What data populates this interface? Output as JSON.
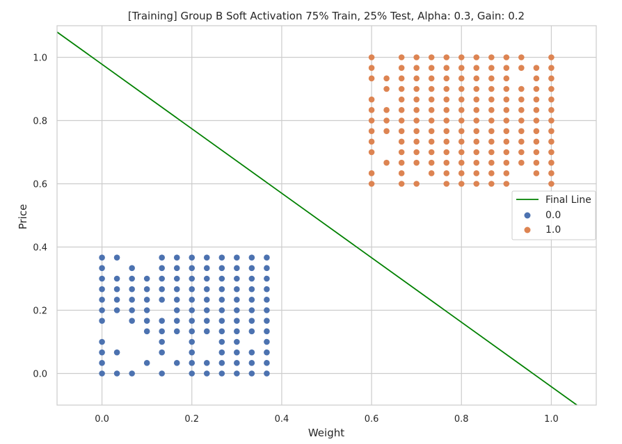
{
  "chart_data": {
    "type": "scatter",
    "title": "[Training] Group B Soft Activation 75% Train, 25% Test, Alpha: 0.3, Gain: 0.2",
    "xlabel": "Weight",
    "ylabel": "Price",
    "xlim": [
      -0.1,
      1.1
    ],
    "ylim": [
      -0.1,
      1.1
    ],
    "xticks": [
      0.0,
      0.2,
      0.4,
      0.6,
      0.8,
      1.0
    ],
    "yticks": [
      0.0,
      0.2,
      0.4,
      0.6,
      0.8,
      1.0
    ],
    "xtick_labels": [
      "0.0",
      "0.2",
      "0.4",
      "0.6",
      "0.8",
      "1.0"
    ],
    "ytick_labels": [
      "0.0",
      "0.2",
      "0.4",
      "0.6",
      "0.8",
      "1.0"
    ],
    "grid": true,
    "legend_position": "center-right",
    "line": {
      "name": "Final Line",
      "color": "#008000",
      "x": [
        -0.1,
        1.057
      ],
      "y": [
        1.08,
        -0.1
      ]
    },
    "series": [
      {
        "name": "0.0",
        "color": "#4c72b0",
        "x_grid": [
          0.0,
          0.0333,
          0.0667,
          0.1,
          0.1333,
          0.1667,
          0.2,
          0.2333,
          0.2667,
          0.3,
          0.3333,
          0.3667
        ],
        "y_grid": [
          0.0,
          0.0333,
          0.0667,
          0.1,
          0.1333,
          0.1667,
          0.2,
          0.2333,
          0.2667,
          0.3,
          0.3333,
          0.3667
        ],
        "rows": [
          "111010111111",
          "100101111111",
          "110010101111",
          "100010101101",
          "000111111111",
          "101111111111",
          "111101111111",
          "111111111111",
          "111111111111",
          "111111111111",
          "101011111111",
          "110011111111"
        ]
      },
      {
        "name": "1.0",
        "color": "#dd8452",
        "x_grid": [
          0.6,
          0.6333,
          0.6667,
          0.7,
          0.7333,
          0.7667,
          0.8,
          0.8333,
          0.8667,
          0.9,
          0.9333,
          0.9667,
          1.0
        ],
        "y_grid": [
          0.6,
          0.6333,
          0.6667,
          0.7,
          0.7333,
          0.7667,
          0.8,
          0.8333,
          0.8667,
          0.9,
          0.9333,
          0.9667,
          1.0
        ],
        "rows": [
          "1011011111001",
          "1010111111011",
          "0111111111111",
          "1011111111111",
          "1011111111111",
          "1111111111111",
          "1111111111111",
          "1111111111111",
          "1011111111111",
          "0111111111111",
          "1111111111011",
          "1011111111111",
          "1011111111101"
        ]
      }
    ]
  }
}
